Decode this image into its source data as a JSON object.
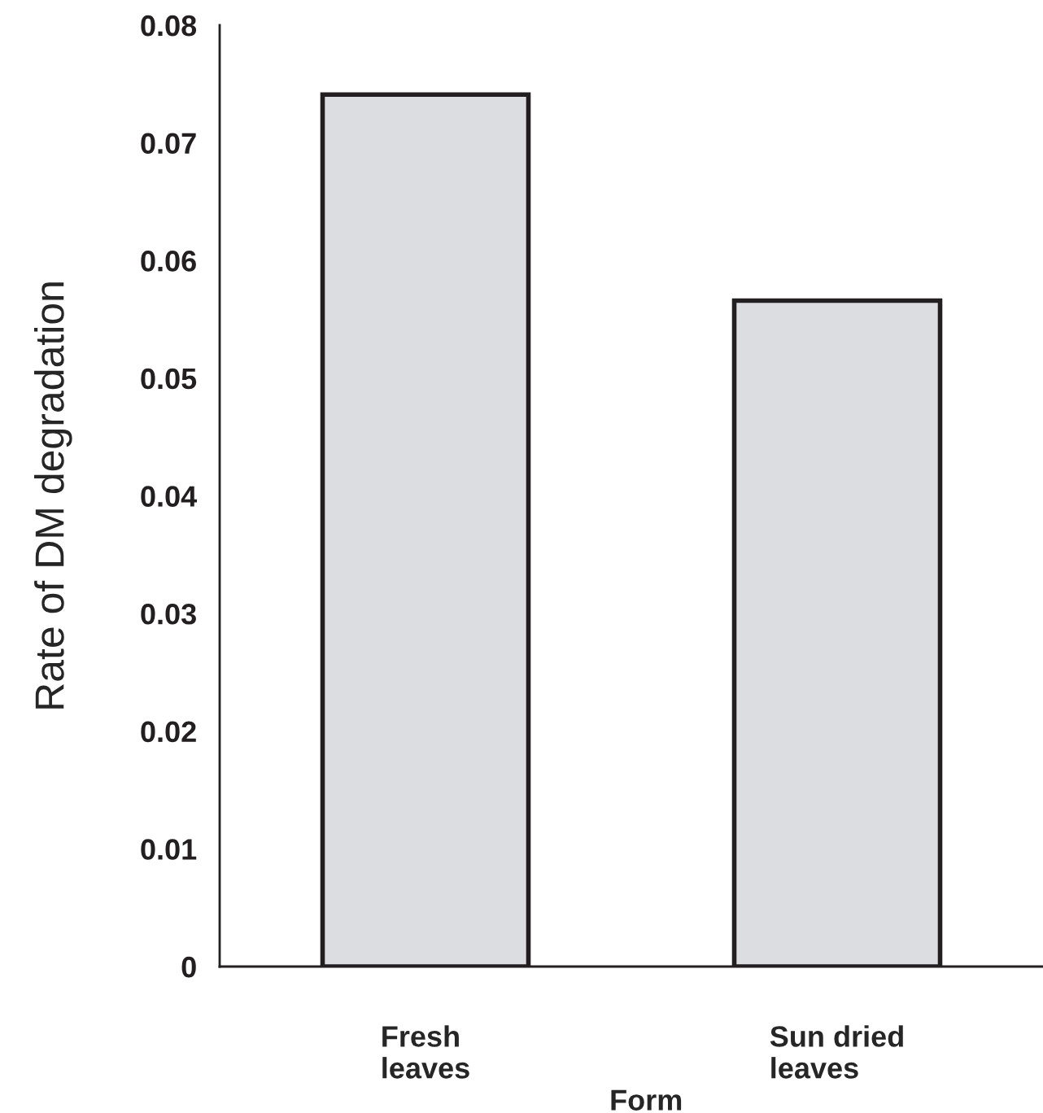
{
  "chart_data": {
    "type": "bar",
    "xlabel": "Form",
    "ylabel": "Rate of DM degradation",
    "categories": [
      "Fresh\nleaves",
      "Sun dried\nleaves"
    ],
    "values": [
      0.0741,
      0.0566
    ],
    "color": "#dcdde0",
    "ylim": [
      0,
      0.08
    ],
    "yticks": [
      0,
      0.01,
      0.02,
      0.03,
      0.04,
      0.05,
      0.06,
      0.07,
      0.08
    ],
    "grid": false,
    "legend": false
  }
}
